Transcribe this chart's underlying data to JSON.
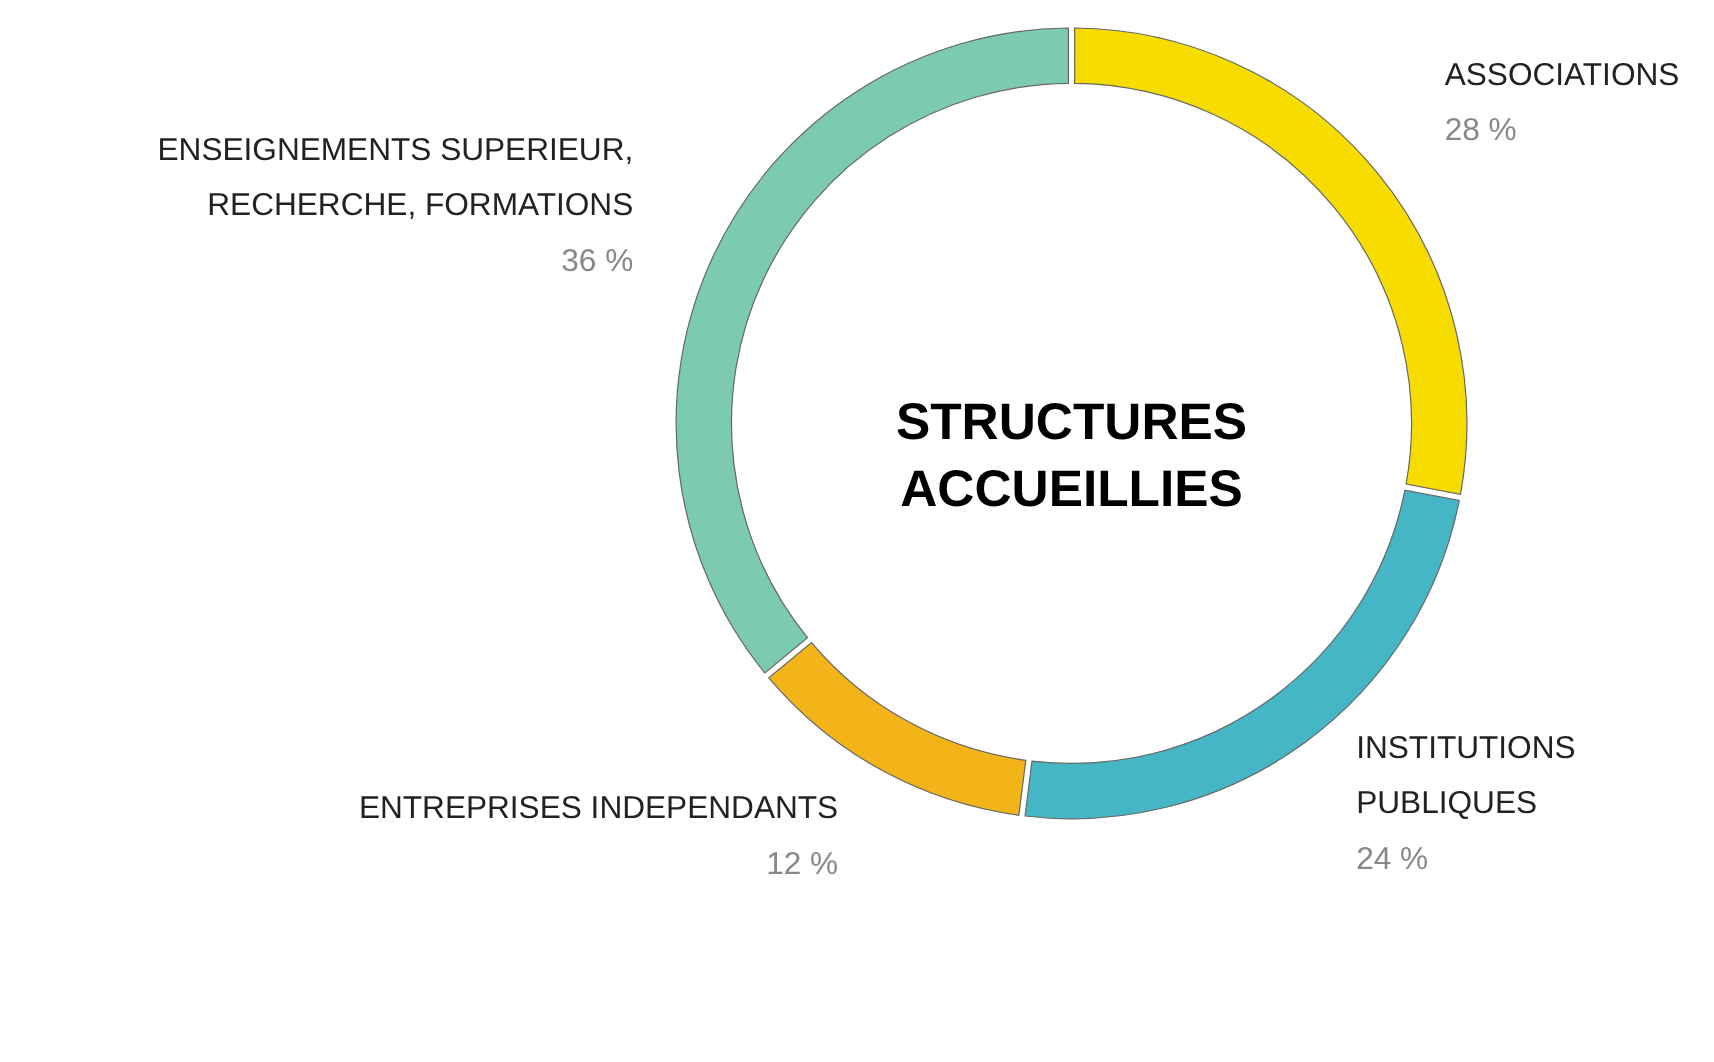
{
  "chart_data": {
    "type": "donut",
    "title": "STRUCTURES ACCUEILLIES",
    "categories": [
      "ASSOCIATIONS",
      "INSTITUTIONS PUBLIQUES",
      "ENTREPRISES INDEPENDANTS",
      "ENSEIGNEMENTS SUPERIEUR, RECHERCHE, FORMATIONS"
    ],
    "values": [
      28,
      24,
      12,
      36
    ],
    "colors": [
      "#f7dc00",
      "#45b6c6",
      "#f2b418",
      "#7ccab0"
    ],
    "value_labels": [
      "28 %",
      "24 %",
      "12 %",
      "36 %"
    ]
  }
}
